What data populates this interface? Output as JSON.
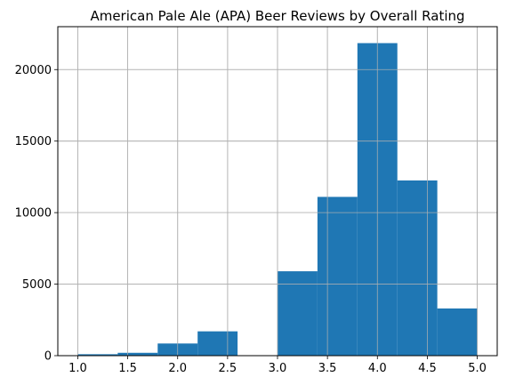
{
  "chart_data": {
    "type": "bar",
    "title": "American Pale Ale (APA) Beer Reviews by Overall Rating",
    "xlabel": "",
    "ylabel": "",
    "xlim": [
      1.0,
      5.0
    ],
    "ylim": [
      0,
      23000
    ],
    "grid": true,
    "x_ticks": [
      "1.0",
      "1.5",
      "2.0",
      "2.5",
      "3.0",
      "3.5",
      "4.0",
      "4.5",
      "5.0"
    ],
    "y_ticks": [
      "0",
      "5000",
      "10000",
      "15000",
      "20000"
    ],
    "bins": [
      {
        "x0": 1.0,
        "x1": 1.4,
        "value": 100
      },
      {
        "x0": 1.4,
        "x1": 1.8,
        "value": 200
      },
      {
        "x0": 1.8,
        "x1": 2.2,
        "value": 850
      },
      {
        "x0": 2.2,
        "x1": 2.6,
        "value": 1700
      },
      {
        "x0": 2.6,
        "x1": 3.0,
        "value": 0
      },
      {
        "x0": 3.0,
        "x1": 3.4,
        "value": 5900
      },
      {
        "x0": 3.4,
        "x1": 3.8,
        "value": 11100
      },
      {
        "x0": 3.8,
        "x1": 4.2,
        "value": 21850
      },
      {
        "x0": 4.2,
        "x1": 4.6,
        "value": 12250
      },
      {
        "x0": 4.6,
        "x1": 5.0,
        "value": 3300
      }
    ],
    "bar_color": "#1f77b4",
    "grid_color": "#b0b0b0"
  }
}
